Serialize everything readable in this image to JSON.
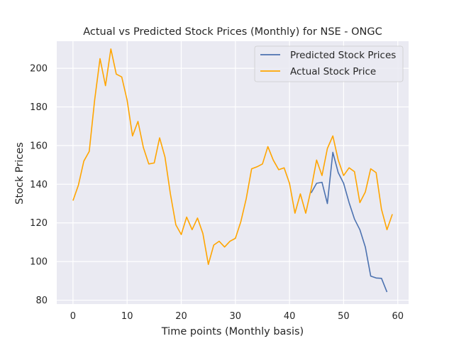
{
  "chart_data": {
    "type": "line",
    "title": "Actual vs Predicted Stock Prices (Monthly) for NSE - ONGC",
    "xlabel": "Time points (Monthly basis)",
    "ylabel": "Stock Prices",
    "xlim": [
      -3,
      62
    ],
    "ylim": [
      78,
      214
    ],
    "xticks": [
      0,
      10,
      20,
      30,
      40,
      50,
      60
    ],
    "yticks": [
      80,
      100,
      120,
      140,
      160,
      180,
      200
    ],
    "grid": true,
    "legend_position": "top-right",
    "background_color": "#eaeaf2",
    "series": [
      {
        "name": "Predicted Stock Prices",
        "color": "#4c72b0",
        "x": [
          44,
          45,
          46,
          47,
          48,
          49,
          50,
          51,
          52,
          53,
          54,
          55,
          56,
          57,
          58
        ],
        "y": [
          135.5,
          140.5,
          141,
          130,
          156.5,
          146,
          140.5,
          130.5,
          122,
          116.5,
          107.5,
          92.5,
          91.5,
          91.3,
          84.2
        ]
      },
      {
        "name": "Actual Stock Price",
        "color": "#ffa500",
        "x": [
          0,
          1,
          2,
          3,
          4,
          5,
          6,
          7,
          8,
          9,
          10,
          11,
          12,
          13,
          14,
          15,
          16,
          17,
          18,
          19,
          20,
          21,
          22,
          23,
          24,
          25,
          26,
          27,
          28,
          29,
          30,
          31,
          32,
          33,
          34,
          35,
          36,
          37,
          38,
          39,
          40,
          41,
          42,
          43,
          44,
          45,
          46,
          47,
          48,
          49,
          50,
          51,
          52,
          53,
          54,
          55,
          56,
          57,
          58,
          59
        ],
        "y": [
          131.5,
          139.5,
          152,
          157,
          183.5,
          205,
          191,
          210,
          197,
          195.5,
          183.5,
          165,
          172.5,
          159,
          150.5,
          151,
          164,
          154,
          135,
          119,
          114,
          123,
          116.5,
          122.5,
          114.5,
          98.5,
          108.5,
          110.5,
          107.5,
          110.5,
          112,
          120.5,
          132.5,
          148,
          149,
          150.5,
          159.5,
          152.5,
          147.5,
          148.5,
          140.5,
          125,
          135,
          125,
          137.5,
          152.5,
          144.5,
          158.5,
          165,
          152.5,
          144.5,
          148.5,
          146.5,
          130.5,
          136,
          148,
          146,
          127,
          116.5,
          124.5
        ]
      }
    ]
  }
}
